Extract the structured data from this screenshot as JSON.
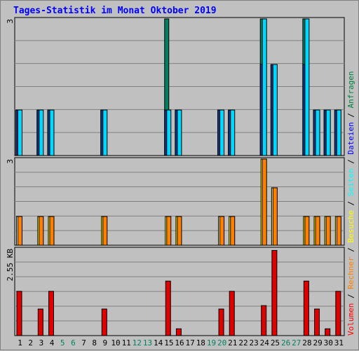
{
  "title": "Tages-Statistik im Monat Oktober 2019",
  "legend": {
    "separator": " / ",
    "items": [
      {
        "label": "Volumen",
        "color": "#ff0000"
      },
      {
        "label": "Rechner",
        "color": "#ff8000"
      },
      {
        "label": "Besuche",
        "color": "#ffff00"
      },
      {
        "label": "Seiten",
        "color": "#00ffff"
      },
      {
        "label": "Dateien",
        "color": "#0000ff"
      },
      {
        "label": "Anfragen",
        "color": "#008040"
      }
    ]
  },
  "colors": {
    "anfragen": "#008060",
    "dateien": "#0a3a8a",
    "seiten": "#00d8ff",
    "besuche": "#ffff00",
    "rechner": "#ff8000",
    "volumen": "#e00000",
    "weekend_label": "#008060",
    "label": "#000000",
    "grid": "#808080",
    "panel": "#c0c0c0"
  },
  "chart_data": {
    "type": "bar",
    "categories": [
      "1",
      "2",
      "3",
      "4",
      "5",
      "6",
      "7",
      "8",
      "9",
      "10",
      "11",
      "12",
      "13",
      "14",
      "15",
      "16",
      "17",
      "18",
      "19",
      "20",
      "21",
      "22",
      "23",
      "24",
      "25",
      "26",
      "27",
      "28",
      "29",
      "30",
      "31"
    ],
    "weekend_days": [
      "5",
      "6",
      "12",
      "13",
      "19",
      "20",
      "26",
      "27"
    ],
    "panels": [
      {
        "name": "hits",
        "max_label": "3",
        "ylim": [
          0,
          3
        ],
        "series": [
          {
            "name": "Anfragen",
            "values": [
              1,
              0,
              1,
              1,
              0,
              0,
              0,
              0,
              1,
              0,
              0,
              0,
              0,
              0,
              3,
              1,
              0,
              0,
              0,
              1,
              1,
              0,
              0,
              3,
              2,
              0,
              0,
              3,
              1,
              1,
              1
            ]
          },
          {
            "name": "Dateien",
            "values": [
              1,
              0,
              1,
              1,
              0,
              0,
              0,
              0,
              1,
              0,
              0,
              0,
              0,
              0,
              1,
              1,
              0,
              0,
              0,
              1,
              1,
              0,
              0,
              2,
              2,
              0,
              0,
              2,
              1,
              1,
              1
            ]
          },
          {
            "name": "Seiten",
            "values": [
              1,
              0,
              1,
              1,
              0,
              0,
              0,
              0,
              1,
              0,
              0,
              0,
              0,
              0,
              1,
              1,
              0,
              0,
              0,
              1,
              1,
              0,
              0,
              3,
              2,
              0,
              0,
              3,
              1,
              1,
              1
            ]
          }
        ]
      },
      {
        "name": "visits",
        "max_label": "3",
        "ylim": [
          0,
          3
        ],
        "series": [
          {
            "name": "Besuche",
            "values": [
              1,
              0,
              1,
              1,
              0,
              0,
              0,
              0,
              1,
              0,
              0,
              0,
              0,
              0,
              1,
              1,
              0,
              0,
              0,
              1,
              1,
              0,
              0,
              3,
              2,
              0,
              0,
              1,
              1,
              1,
              1
            ]
          },
          {
            "name": "Rechner",
            "values": [
              1,
              0,
              1,
              1,
              0,
              0,
              0,
              0,
              1,
              0,
              0,
              0,
              0,
              0,
              1,
              1,
              0,
              0,
              0,
              1,
              1,
              0,
              0,
              3,
              2,
              0,
              0,
              1,
              1,
              1,
              1
            ]
          }
        ]
      },
      {
        "name": "volume",
        "max_label": "2.55 KB",
        "ylim": [
          0,
          2.55
        ],
        "series": [
          {
            "name": "Volumen",
            "values": [
              1.3,
              0,
              0.78,
              1.3,
              0,
              0,
              0,
              0,
              0.78,
              0,
              0,
              0,
              0,
              0,
              1.6,
              0.2,
              0,
              0,
              0,
              0.78,
              1.3,
              0,
              0,
              0.88,
              2.5,
              0,
              0,
              1.6,
              0.78,
              0.2,
              1.3
            ]
          }
        ]
      }
    ]
  }
}
